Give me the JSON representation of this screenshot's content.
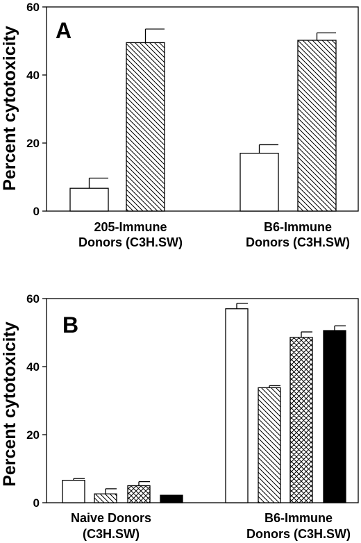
{
  "chart_data": [
    {
      "panel": "A",
      "type": "bar",
      "ylabel": "Percent cytotoxicity",
      "ylim": [
        0,
        60
      ],
      "yticks": [
        0,
        20,
        40,
        60
      ],
      "categories": [
        {
          "line1": "205-Immune",
          "line2": "Donors (C3H.SW)"
        },
        {
          "line1": "B6-Immune",
          "line2": "Donors (C3H.SW)"
        }
      ],
      "series": [
        {
          "pattern": "open",
          "values": [
            6.7,
            17.0
          ],
          "errors": [
            3.0,
            2.5
          ]
        },
        {
          "pattern": "hatch",
          "values": [
            49.5,
            50.2
          ],
          "errors": [
            4.0,
            2.2
          ]
        }
      ]
    },
    {
      "panel": "B",
      "type": "bar",
      "ylabel": "Percent cytotoxicity",
      "ylim": [
        0,
        60
      ],
      "yticks": [
        0,
        20,
        40,
        60
      ],
      "categories": [
        {
          "line1": "Naive Donors",
          "line2": "(C3H.SW)"
        },
        {
          "line1": "B6-Immune",
          "line2": "Donors (C3H.SW)"
        }
      ],
      "series": [
        {
          "pattern": "open",
          "values": [
            6.6,
            57.0
          ],
          "errors": [
            0.5,
            1.6
          ]
        },
        {
          "pattern": "hatch",
          "values": [
            2.6,
            33.8
          ],
          "errors": [
            1.5,
            0.6
          ]
        },
        {
          "pattern": "crosshatch",
          "values": [
            5.0,
            48.6
          ],
          "errors": [
            1.2,
            1.6
          ]
        },
        {
          "pattern": "solid",
          "values": [
            2.2,
            50.6
          ],
          "errors": [
            0,
            1.4
          ]
        }
      ]
    }
  ]
}
